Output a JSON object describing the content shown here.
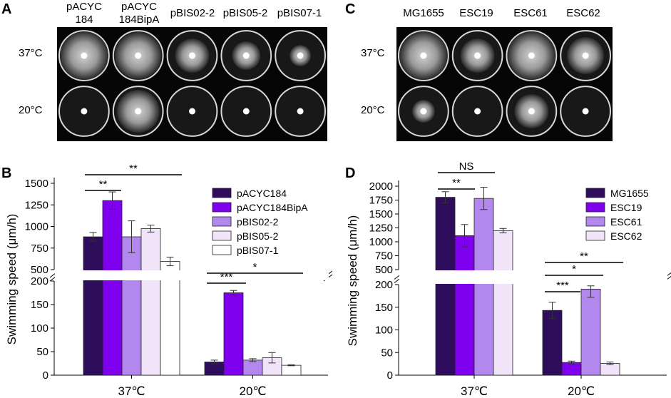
{
  "panels": {
    "A": {
      "letter": "A",
      "plate_labels": [
        {
          "line1": "pACYC",
          "line2": "184"
        },
        {
          "line1": "pACYC",
          "line2": "184BipA"
        },
        {
          "line1": "pBIS02-2",
          "line2": ""
        },
        {
          "line1": "pBIS05-2",
          "line2": ""
        },
        {
          "line1": "pBIS07-1",
          "line2": ""
        }
      ],
      "row_labels": [
        "37°C",
        "20°C"
      ]
    },
    "C": {
      "letter": "C",
      "plate_labels": [
        "MG1655",
        "ESC19",
        "ESC61",
        "ESC62"
      ],
      "row_labels": [
        "37°C",
        "20°C"
      ]
    },
    "B": {
      "letter": "B"
    },
    "D": {
      "letter": "D"
    }
  },
  "chart_data": [
    {
      "panel": "B",
      "type": "bar",
      "ylabel": "Swimming speed (μm/h)",
      "categories": [
        "37℃",
        "20℃"
      ],
      "broken_axis": true,
      "upper_ticks": [
        500,
        750,
        1000,
        1250,
        1500
      ],
      "lower_ticks": [
        0,
        50,
        100,
        150,
        200
      ],
      "series": [
        {
          "name": "pACYC184",
          "color": "#2e0d5c",
          "values": [
            880,
            28
          ],
          "errors": [
            50,
            4
          ]
        },
        {
          "name": "pACYC184BipA",
          "color": "#7f00ee",
          "values": [
            1300,
            175
          ],
          "errors": [
            100,
            5
          ]
        },
        {
          "name": "pBIS02-2",
          "color": "#b288ee",
          "values": [
            880,
            32
          ],
          "errors": [
            185,
            3
          ]
        },
        {
          "name": "pBIS05-2",
          "color": "#f1e4f8",
          "values": [
            975,
            37
          ],
          "errors": [
            40,
            11
          ]
        },
        {
          "name": "pBIS07-1",
          "color": "#ffffff",
          "values": [
            595,
            21
          ],
          "errors": [
            50,
            1
          ]
        }
      ],
      "significance": [
        {
          "label": "**"
        },
        {
          "label": "**"
        },
        {
          "label": "***"
        },
        {
          "label": "*"
        }
      ]
    },
    {
      "panel": "D",
      "type": "bar",
      "ylabel": "Swimming speed (μm/h)",
      "categories": [
        "37℃",
        "20℃"
      ],
      "broken_axis": true,
      "upper_ticks": [
        500,
        750,
        1000,
        1250,
        1500,
        1750,
        2000
      ],
      "lower_ticks": [
        0,
        50,
        100,
        150,
        200
      ],
      "series": [
        {
          "name": "MG1655",
          "color": "#2e0d5c",
          "values": [
            1800,
            143
          ],
          "errors": [
            100,
            18
          ]
        },
        {
          "name": "ESC19",
          "color": "#7f00ee",
          "values": [
            1110,
            28
          ],
          "errors": [
            200,
            3
          ]
        },
        {
          "name": "ESC61",
          "color": "#b288ee",
          "values": [
            1780,
            190
          ],
          "errors": [
            200,
            18
          ]
        },
        {
          "name": "ESC62",
          "color": "#f1e4f8",
          "values": [
            1200,
            26
          ],
          "errors": [
            40,
            3
          ]
        }
      ],
      "significance": [
        {
          "label": "***"
        },
        {
          "label": "NS"
        },
        {
          "label": "**"
        },
        {
          "label": "**"
        },
        {
          "label": "*"
        },
        {
          "label": "***"
        }
      ]
    }
  ]
}
